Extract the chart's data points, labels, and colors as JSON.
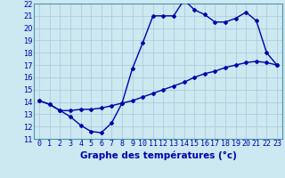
{
  "title": "Graphe des températures (°c)",
  "xlim": [
    -0.5,
    23.5
  ],
  "ylim": [
    11,
    22
  ],
  "xticks": [
    0,
    1,
    2,
    3,
    4,
    5,
    6,
    7,
    8,
    9,
    10,
    11,
    12,
    13,
    14,
    15,
    16,
    17,
    18,
    19,
    20,
    21,
    22,
    23
  ],
  "yticks": [
    11,
    12,
    13,
    14,
    15,
    16,
    17,
    18,
    19,
    20,
    21,
    22
  ],
  "line1_x": [
    0,
    1,
    2,
    3,
    4,
    5,
    6,
    7,
    8,
    9,
    10,
    11,
    12,
    13,
    14,
    15,
    16,
    17,
    18,
    19,
    20,
    21,
    22,
    23
  ],
  "line1_y": [
    14.1,
    13.8,
    13.3,
    12.8,
    12.1,
    11.6,
    11.5,
    12.3,
    13.9,
    16.7,
    18.8,
    21.0,
    21.0,
    21.0,
    22.3,
    21.5,
    21.1,
    20.5,
    20.5,
    20.8,
    21.3,
    20.6,
    18.0,
    17.0
  ],
  "line2_x": [
    0,
    1,
    2,
    3,
    4,
    5,
    6,
    7,
    8,
    9,
    10,
    11,
    12,
    13,
    14,
    15,
    16,
    17,
    18,
    19,
    20,
    21,
    22,
    23
  ],
  "line2_y": [
    14.1,
    13.8,
    13.3,
    13.3,
    13.4,
    13.4,
    13.5,
    13.7,
    13.9,
    14.1,
    14.4,
    14.7,
    15.0,
    15.3,
    15.6,
    16.0,
    16.3,
    16.5,
    16.8,
    17.0,
    17.2,
    17.3,
    17.2,
    17.0
  ],
  "line_color": "#0000aa",
  "bg_color": "#cce8f0",
  "grid_color": "#a8c8d8",
  "marker": "D",
  "marker_size": 2.0,
  "linewidth": 1.0,
  "title_fontsize": 7.5,
  "tick_fontsize": 6.0
}
